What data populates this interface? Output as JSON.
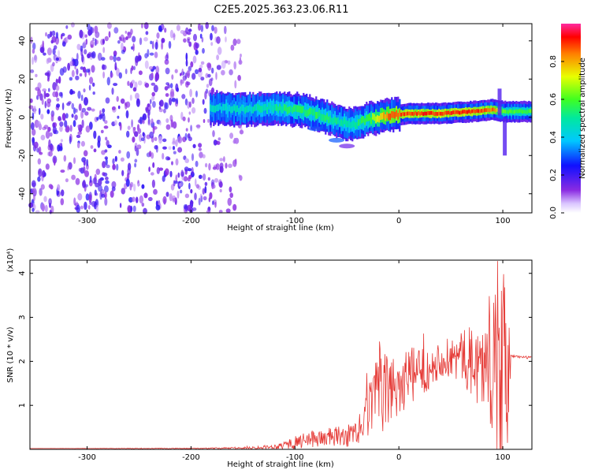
{
  "title": "C2E5.2025.363.23.06.R11",
  "colors": {
    "snr_line": "#e53935",
    "spec_low": "#7b1fe0",
    "spec_mid": "#1ec8ff",
    "spec_high": "#e0001a",
    "axis": "#000000"
  },
  "chart_data": [
    {
      "type": "heatmap",
      "title": "C2E5.2025.363.23.06.R11",
      "xlabel": "Height of straight line (km)",
      "ylabel": "Frequency (Hz)",
      "xlim": [
        -355,
        128
      ],
      "ylim": [
        -50,
        49
      ],
      "xticks": [
        {
          "value": -300,
          "label": "-300"
        },
        {
          "value": -200,
          "label": "-200"
        },
        {
          "value": -100,
          "label": "-100"
        },
        {
          "value": 0,
          "label": "0"
        },
        {
          "value": 100,
          "label": "100"
        }
      ],
      "yticks": [
        {
          "value": -40,
          "label": "-40"
        },
        {
          "value": -20,
          "label": "-20"
        },
        {
          "value": 0,
          "label": "0"
        },
        {
          "value": 20,
          "label": "20"
        },
        {
          "value": 40,
          "label": "40"
        }
      ],
      "colorbar": {
        "label": "Normalized spectral amplitude",
        "range": [
          0,
          1
        ],
        "ticks": [
          {
            "value": 0.0,
            "label": "0.0"
          },
          {
            "value": 0.2,
            "label": "0.2"
          },
          {
            "value": 0.4,
            "label": "0.4"
          },
          {
            "value": 0.6,
            "label": "0.6"
          },
          {
            "value": 0.8,
            "label": "0.8"
          }
        ]
      },
      "noise_region_x": [
        -355,
        -150
      ],
      "ridge": [
        {
          "x": -180,
          "freq": 5,
          "amp": 0.45
        },
        {
          "x": -150,
          "freq": 4,
          "amp": 0.45
        },
        {
          "x": -120,
          "freq": 5,
          "amp": 0.5
        },
        {
          "x": -100,
          "freq": 4,
          "amp": 0.55
        },
        {
          "x": -80,
          "freq": 2,
          "amp": 0.55
        },
        {
          "x": -60,
          "freq": -2,
          "amp": 0.5
        },
        {
          "x": -45,
          "freq": -4,
          "amp": 0.5
        },
        {
          "x": -30,
          "freq": -1,
          "amp": 0.6
        },
        {
          "x": -10,
          "freq": 1,
          "amp": 0.85
        },
        {
          "x": 10,
          "freq": 2,
          "amp": 0.9
        },
        {
          "x": 40,
          "freq": 2,
          "amp": 0.9
        },
        {
          "x": 70,
          "freq": 3,
          "amp": 0.9
        },
        {
          "x": 90,
          "freq": 4,
          "amp": 0.85
        },
        {
          "x": 100,
          "freq": 3,
          "amp": 0.6
        },
        {
          "x": 128,
          "freq": 3,
          "amp": 0.6
        }
      ]
    },
    {
      "type": "line",
      "title": "",
      "xlabel": "Height of straight line (km)",
      "ylabel": "SNR (10 * v/v)",
      "yscale_label": "(x10⁴)",
      "xlim": [
        -355,
        128
      ],
      "ylim": [
        0,
        4.3
      ],
      "xticks": [
        {
          "value": -300,
          "label": "-300"
        },
        {
          "value": -200,
          "label": "-200"
        },
        {
          "value": -100,
          "label": "-100"
        },
        {
          "value": 0,
          "label": "0"
        },
        {
          "value": 100,
          "label": "100"
        }
      ],
      "yticks": [
        {
          "value": 1,
          "label": "1"
        },
        {
          "value": 2,
          "label": "2"
        },
        {
          "value": 3,
          "label": "3"
        },
        {
          "value": 4,
          "label": "4"
        }
      ],
      "envelope": [
        {
          "x": -355,
          "mean": 0.02,
          "amp": 0.0
        },
        {
          "x": -200,
          "mean": 0.02,
          "amp": 0.01
        },
        {
          "x": -150,
          "mean": 0.03,
          "amp": 0.02
        },
        {
          "x": -120,
          "mean": 0.06,
          "amp": 0.05
        },
        {
          "x": -100,
          "mean": 0.15,
          "amp": 0.15
        },
        {
          "x": -80,
          "mean": 0.25,
          "amp": 0.2
        },
        {
          "x": -50,
          "mean": 0.3,
          "amp": 0.25
        },
        {
          "x": -35,
          "mean": 0.4,
          "amp": 0.3
        },
        {
          "x": -30,
          "mean": 0.9,
          "amp": 0.7
        },
        {
          "x": -20,
          "mean": 1.2,
          "amp": 0.9
        },
        {
          "x": 0,
          "mean": 1.5,
          "amp": 0.8
        },
        {
          "x": 20,
          "mean": 1.75,
          "amp": 0.6
        },
        {
          "x": 40,
          "mean": 2.05,
          "amp": 0.4
        },
        {
          "x": 60,
          "mean": 2.1,
          "amp": 0.6
        },
        {
          "x": 80,
          "mean": 1.9,
          "amp": 1.0
        },
        {
          "x": 90,
          "mean": 1.8,
          "amp": 1.4
        },
        {
          "x": 97,
          "mean": 1.5,
          "amp": 2.6
        },
        {
          "x": 103,
          "mean": 1.4,
          "amp": 2.6
        },
        {
          "x": 108,
          "mean": 2.12,
          "amp": 0.03
        },
        {
          "x": 128,
          "mean": 2.08,
          "amp": 0.03
        }
      ]
    }
  ]
}
